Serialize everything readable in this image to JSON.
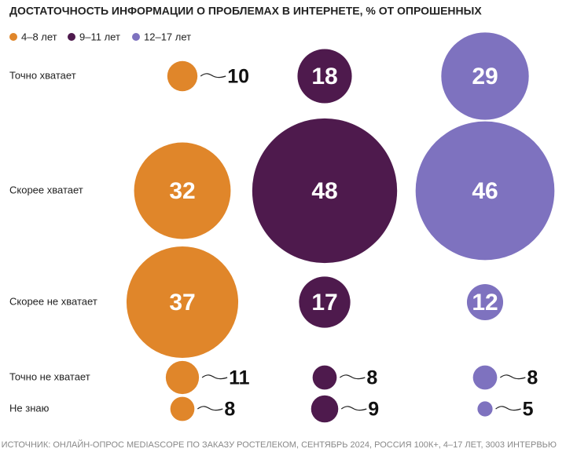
{
  "chart_data": {
    "type": "bubble",
    "title": "ДОСТАТОЧНОСТЬ ИНФОРМАЦИИ О ПРОБЛЕМАХ В ИНТЕРНЕТЕ, % ОТ ОПРОШЕННЫХ",
    "categories": [
      "Точно хватает",
      "Скорее хватает",
      "Скорее не хватает",
      "Точно не хватает",
      "Не знаю"
    ],
    "series": [
      {
        "name": "4–8 лет",
        "color": "#e0862a",
        "values": [
          10,
          32,
          37,
          11,
          8
        ]
      },
      {
        "name": "9–11 лет",
        "color": "#4e1a4d",
        "values": [
          18,
          48,
          17,
          8,
          9
        ]
      },
      {
        "name": "12–17 лет",
        "color": "#7e72bf",
        "values": [
          29,
          46,
          12,
          8,
          5
        ]
      }
    ],
    "source": "ИСТОЧНИК: ОНЛАЙН-ОПРОС MEDIASCOPE ПО ЗАКАЗУ РОСТЕЛЕКОМ, СЕНТЯБРЬ 2024, РОССИЯ 100К+, 4–17 ЛЕТ, 3003 ИНТЕРВЬЮ"
  }
}
